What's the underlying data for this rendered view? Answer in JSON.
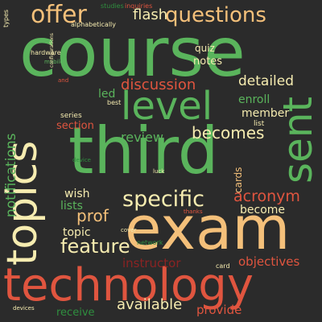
{
  "palette": {
    "background": "#2b2b2b",
    "green": "#5ab45c",
    "dark_green": "#2f8f3f",
    "orange": "#f4c07a",
    "light_yellow": "#f6ecb0",
    "red": "#e0553f",
    "dark_red": "#8b2323",
    "pale_green": "#c9e7a8",
    "gray": "#777777"
  },
  "words": [
    {
      "text": "course",
      "color": "green"
    },
    {
      "text": "third",
      "color": "green"
    },
    {
      "text": "exam",
      "color": "orange"
    },
    {
      "text": "technology",
      "color": "red"
    },
    {
      "text": "level",
      "color": "green"
    },
    {
      "text": "topics",
      "color": "light_yellow"
    },
    {
      "text": "questions",
      "color": "orange"
    },
    {
      "text": "offer",
      "color": "orange"
    },
    {
      "text": "sent",
      "color": "green"
    },
    {
      "text": "specific",
      "color": "light_yellow"
    },
    {
      "text": "feature",
      "color": "light_yellow"
    },
    {
      "text": "notifications",
      "color": "green"
    },
    {
      "text": "becomes",
      "color": "light_yellow"
    },
    {
      "text": "acronym",
      "color": "red"
    },
    {
      "text": "flash",
      "color": "light_yellow"
    },
    {
      "text": "discussion",
      "color": "red"
    },
    {
      "text": "detailed",
      "color": "light_yellow"
    },
    {
      "text": "available",
      "color": "light_yellow"
    },
    {
      "text": "objectives",
      "color": "red"
    },
    {
      "text": "instructor",
      "color": "dark_red"
    },
    {
      "text": "provide",
      "color": "red"
    },
    {
      "text": "prof",
      "color": "orange"
    },
    {
      "text": "review",
      "color": "green"
    },
    {
      "text": "enroll",
      "color": "green"
    },
    {
      "text": "member",
      "color": "light_yellow"
    },
    {
      "text": "wish",
      "color": "light_yellow"
    },
    {
      "text": "lists",
      "color": "green"
    },
    {
      "text": "become",
      "color": "light_yellow"
    },
    {
      "text": "topic",
      "color": "light_yellow"
    },
    {
      "text": "receive",
      "color": "dark_green"
    },
    {
      "text": "quiz",
      "color": "light_yellow"
    },
    {
      "text": "notes",
      "color": "light_yellow"
    },
    {
      "text": "led",
      "color": "green"
    },
    {
      "text": "section",
      "color": "red"
    },
    {
      "text": "cards",
      "color": "orange"
    },
    {
      "text": "list",
      "color": "light_yellow"
    },
    {
      "text": "series",
      "color": "light_yellow"
    },
    {
      "text": "best",
      "color": "light_yellow"
    },
    {
      "text": "hardware",
      "color": "light_yellow"
    },
    {
      "text": "alphabetically",
      "color": "light_yellow"
    },
    {
      "text": "studies",
      "color": "dark_green"
    },
    {
      "text": "inquiries",
      "color": "red"
    },
    {
      "text": "types",
      "color": "light_yellow"
    },
    {
      "text": "network",
      "color": "dark_green"
    },
    {
      "text": "card",
      "color": "light_yellow"
    },
    {
      "text": "devices",
      "color": "light_yellow"
    },
    {
      "text": "thanks",
      "color": "red"
    },
    {
      "text": "luck",
      "color": "light_yellow"
    },
    {
      "text": "cover",
      "color": "light_yellow"
    },
    {
      "text": "device",
      "color": "dark_green"
    },
    {
      "text": "mobile",
      "color": "green"
    },
    {
      "text": "and",
      "color": "red"
    },
    {
      "text": "configurations",
      "color": "light_yellow"
    }
  ]
}
